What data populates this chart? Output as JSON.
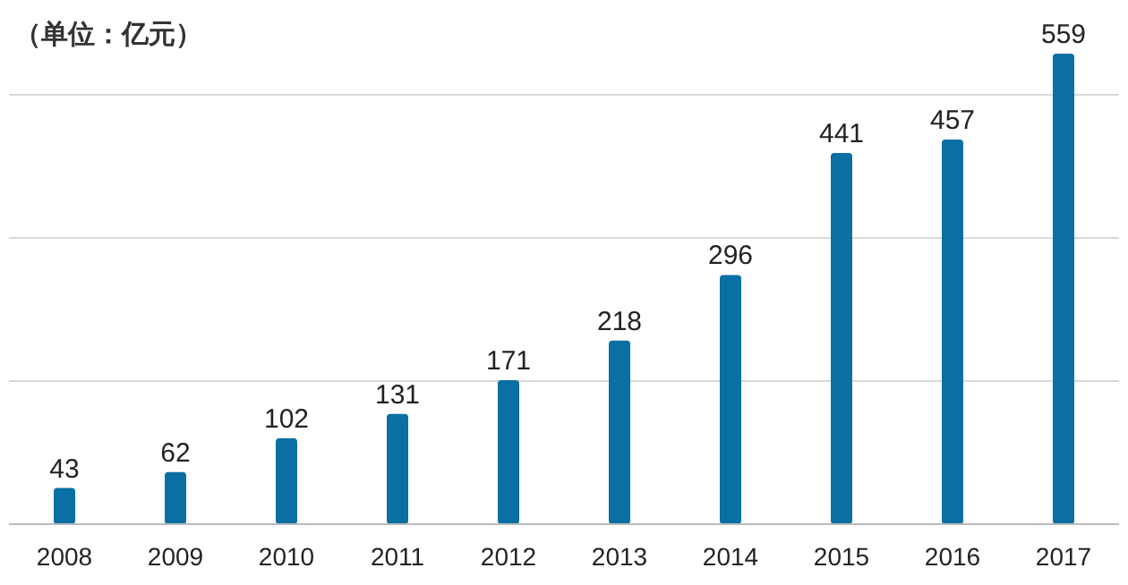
{
  "chart_data": {
    "type": "bar",
    "title": "（单位：亿元）",
    "categories": [
      "2008",
      "2009",
      "2010",
      "2011",
      "2012",
      "2013",
      "2014",
      "2015",
      "2016",
      "2017"
    ],
    "values": [
      43,
      62,
      102,
      131,
      171,
      218,
      296,
      441,
      457,
      559
    ],
    "color": "#0a6fa3",
    "data_labels": true,
    "grid": "y",
    "yticks": [
      {
        "value": 0,
        "label": null
      },
      {
        "value": 170,
        "label": null
      },
      {
        "value": 340,
        "label": null
      },
      {
        "value": 510,
        "label": null
      }
    ]
  }
}
